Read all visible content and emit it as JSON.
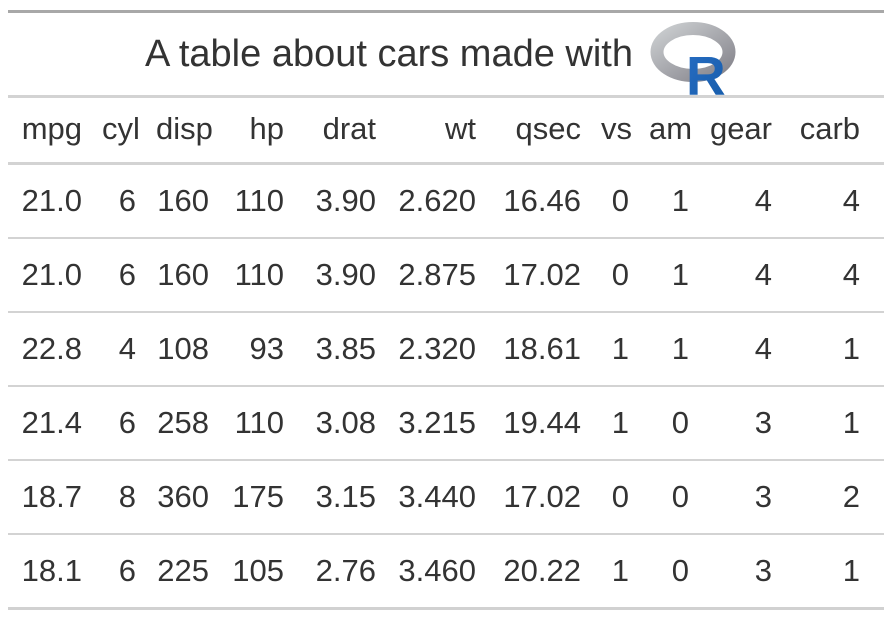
{
  "heading": {
    "title": "A table about cars made with",
    "logo": "r-logo"
  },
  "chart_data": {
    "type": "table",
    "title": "A table about cars made with R",
    "columns": [
      "mpg",
      "cyl",
      "disp",
      "hp",
      "drat",
      "wt",
      "qsec",
      "vs",
      "am",
      "gear",
      "carb"
    ],
    "rows": [
      [
        "21.0",
        "6",
        "160",
        "110",
        "3.90",
        "2.620",
        "16.46",
        "0",
        "1",
        "4",
        "4"
      ],
      [
        "21.0",
        "6",
        "160",
        "110",
        "3.90",
        "2.875",
        "17.02",
        "0",
        "1",
        "4",
        "4"
      ],
      [
        "22.8",
        "4",
        "108",
        "93",
        "3.85",
        "2.320",
        "18.61",
        "1",
        "1",
        "4",
        "1"
      ],
      [
        "21.4",
        "6",
        "258",
        "110",
        "3.08",
        "3.215",
        "19.44",
        "1",
        "0",
        "3",
        "1"
      ],
      [
        "18.7",
        "8",
        "360",
        "175",
        "3.15",
        "3.440",
        "17.02",
        "0",
        "0",
        "3",
        "2"
      ],
      [
        "18.1",
        "6",
        "225",
        "105",
        "2.76",
        "3.460",
        "20.22",
        "1",
        "0",
        "3",
        "1"
      ]
    ],
    "layout": {
      "alignment": "right",
      "grid": "horizontal-rules-only"
    }
  },
  "colors": {
    "text": "#333333",
    "table_top_border": "#A8A8A8",
    "section_border": "#D3D3D3",
    "row_border": "#D3D3D3",
    "table_bottom_border": "#D1D1D1",
    "logo_ring_light": "#CBCED0",
    "logo_ring_dark": "#84838B",
    "logo_r_light": "#276DC3",
    "logo_r_dark": "#165CAA"
  }
}
